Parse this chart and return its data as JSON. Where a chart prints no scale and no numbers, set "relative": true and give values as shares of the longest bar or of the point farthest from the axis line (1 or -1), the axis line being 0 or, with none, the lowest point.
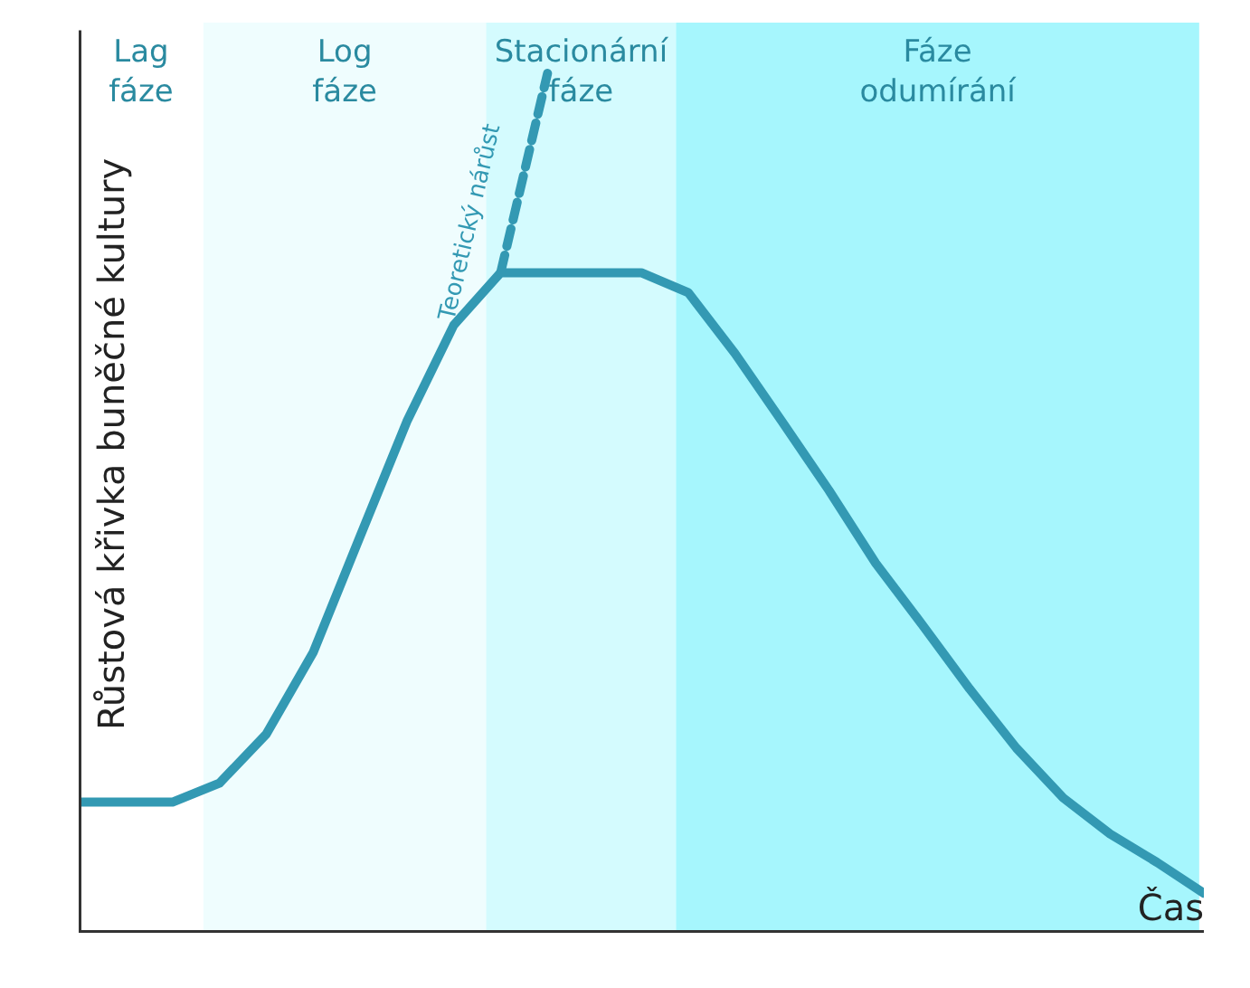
{
  "chart_data": {
    "type": "line",
    "relative": true,
    "ylabel": "Růstová křivka buněčné kultury",
    "xlabel": "Čas",
    "tick_labels": false,
    "grid": false,
    "marker": "none",
    "categories": [
      null,
      null,
      null,
      null,
      null,
      null,
      null,
      null,
      null,
      null,
      null,
      null,
      null,
      null,
      null,
      null,
      null,
      null,
      null,
      null,
      null,
      null,
      null,
      null,
      null
    ],
    "series": [
      {
        "color": "#3399b3",
        "line_style": "solid",
        "values": [
          0.152,
          0.152,
          0.152,
          0.174,
          0.231,
          0.326,
          0.461,
          0.595,
          0.707,
          0.768,
          0.768,
          0.768,
          0.768,
          0.745,
          0.674,
          0.595,
          0.515,
          0.43,
          0.358,
          0.284,
          0.215,
          0.157,
          0.115,
          0.082,
          0.046
        ]
      },
      {
        "name": "Teoretický nárůst",
        "color": "#3399b3",
        "line_style": "dashed",
        "values": [
          null,
          null,
          null,
          null,
          null,
          null,
          null,
          null,
          null,
          0.768,
          1,
          null,
          null,
          null,
          null,
          null,
          null,
          null,
          null,
          null,
          null,
          null,
          null,
          null,
          null
        ]
      }
    ],
    "annotations": [
      "Lag\nfáze",
      "Log\nfáze",
      "Stacionární\nfáze",
      "Fáze\nodumírání"
    ]
  }
}
